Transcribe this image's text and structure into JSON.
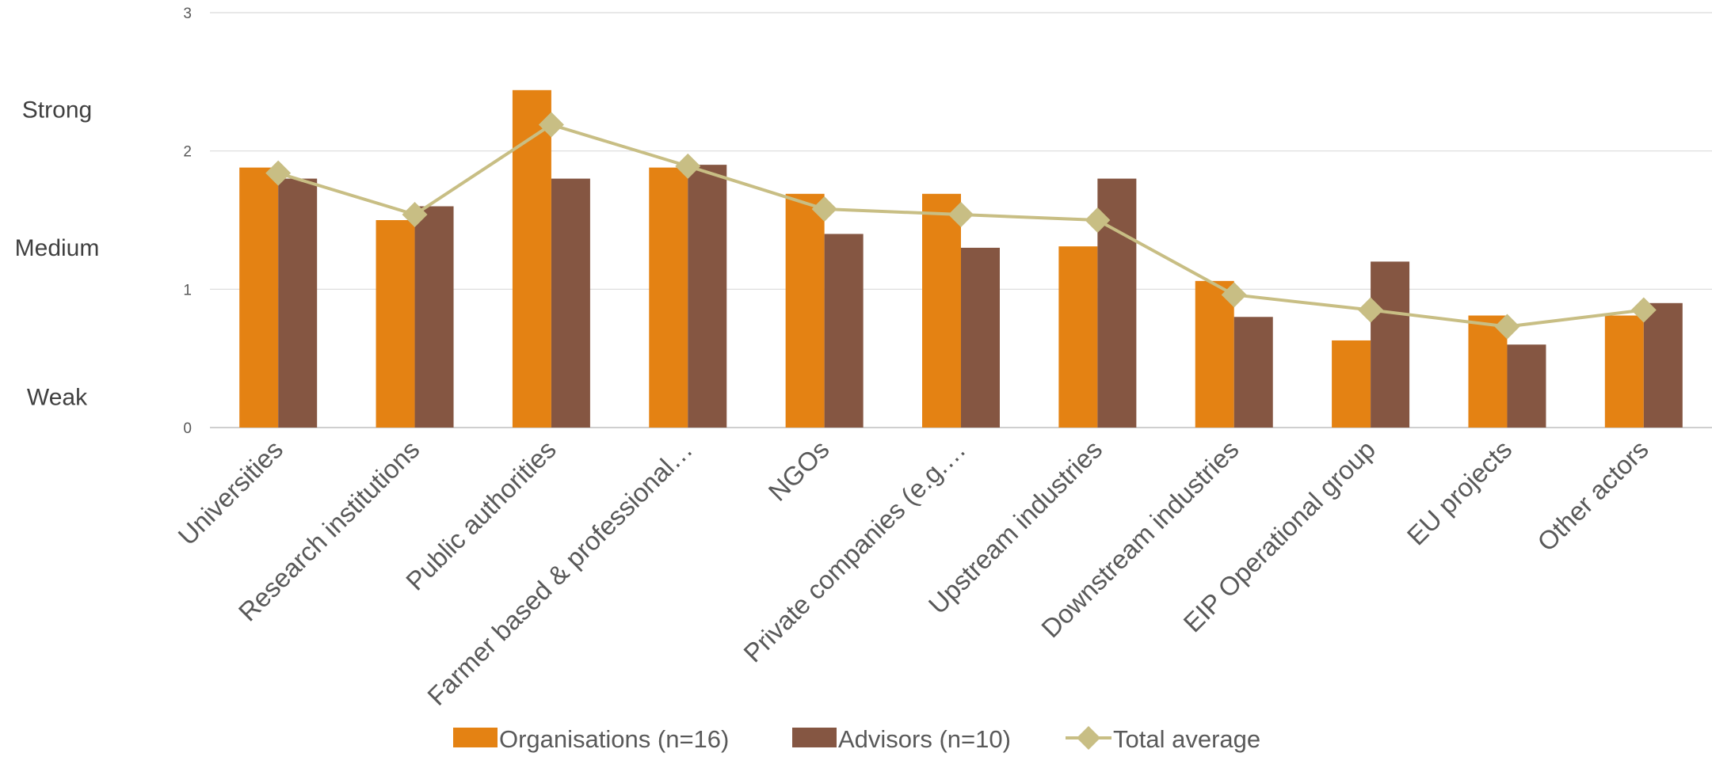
{
  "chart_data": {
    "type": "bar",
    "title": "",
    "xlabel": "",
    "ylabel": "",
    "ylim": [
      0,
      3
    ],
    "yticks": [
      "0",
      "1",
      "2",
      "3"
    ],
    "strength_labels": [
      {
        "label": "Strong",
        "value": 2.3
      },
      {
        "label": "Medium",
        "value": 1.3
      },
      {
        "label": "Weak",
        "value": 0.22
      }
    ],
    "categories": [
      "Universities",
      "Research institutions",
      "Public authorities",
      "Farmer based & professional…",
      "NGOs",
      "Private companies (e.g.…",
      "Upstream industries",
      "Downstream industries",
      "EIP Operational group",
      "EU projects",
      "Other actors"
    ],
    "series": [
      {
        "name": "Organisations (n=16)",
        "kind": "bar",
        "color": "#E48213",
        "values": [
          1.88,
          1.5,
          2.44,
          1.88,
          1.69,
          1.69,
          1.31,
          1.06,
          0.63,
          0.81,
          0.81
        ]
      },
      {
        "name": "Advisors (n=10)",
        "kind": "bar",
        "color": "#855642",
        "values": [
          1.8,
          1.6,
          1.8,
          1.9,
          1.4,
          1.3,
          1.8,
          0.8,
          1.2,
          0.6,
          0.9
        ]
      },
      {
        "name": "Total average",
        "kind": "line",
        "color": "#C8BE84",
        "values": [
          1.84,
          1.54,
          2.19,
          1.89,
          1.58,
          1.54,
          1.5,
          0.96,
          0.85,
          0.73,
          0.85
        ]
      }
    ],
    "grid": true,
    "legend_position": "bottom"
  }
}
